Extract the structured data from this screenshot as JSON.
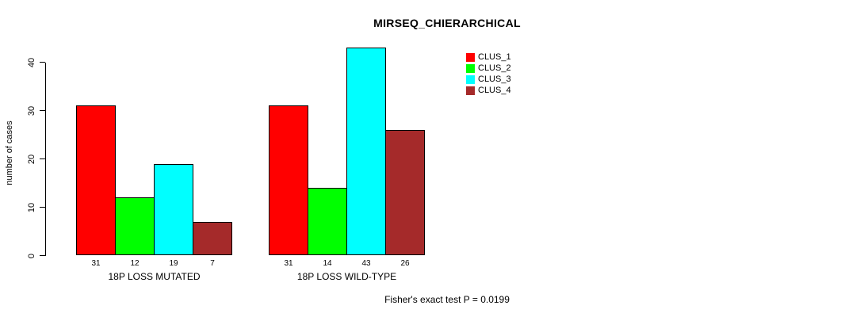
{
  "figure": {
    "background_color": "#ffffff",
    "text_color": "#000000"
  },
  "chart_data": {
    "type": "bar",
    "title": "MIRSEQ_CHIERARCHICAL",
    "ylabel": "number of cases",
    "xlabel": "",
    "annotation": "Fisher's exact test P = 0.0199",
    "categories": [
      "18P LOSS MUTATED",
      "18P LOSS WILD-TYPE"
    ],
    "series": [
      {
        "name": "CLUS_1",
        "color": "#ff0000",
        "values": [
          31,
          31
        ]
      },
      {
        "name": "CLUS_2",
        "color": "#00ff00",
        "values": [
          12,
          14
        ]
      },
      {
        "name": "CLUS_3",
        "color": "#00ffff",
        "values": [
          19,
          43
        ]
      },
      {
        "name": "CLUS_4",
        "color": "#a52a2a",
        "values": [
          7,
          26
        ]
      }
    ],
    "bar_value_labels": true,
    "yticks": [
      0,
      10,
      20,
      30,
      40
    ],
    "ylim": [
      0,
      43.5
    ],
    "grid": false,
    "legend_position": "top-right",
    "bar_border_color": "#000000"
  }
}
